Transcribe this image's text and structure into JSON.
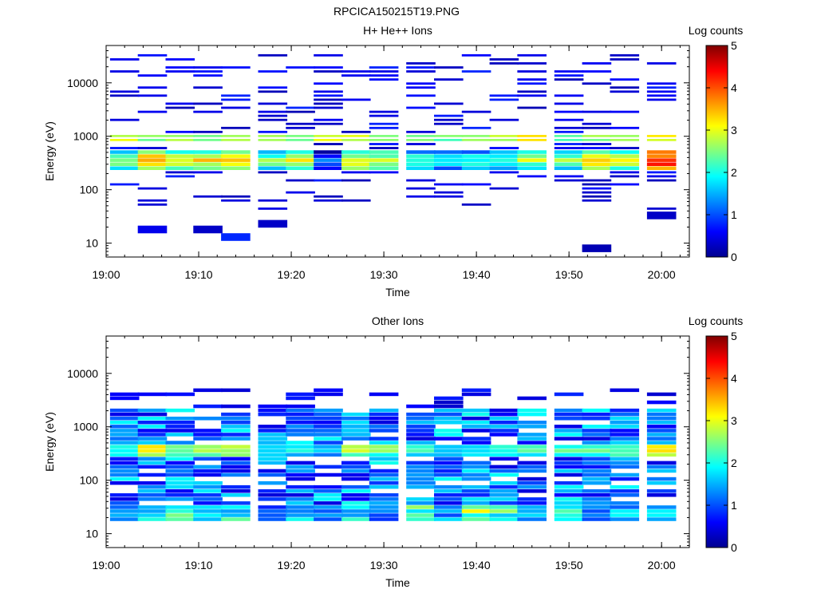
{
  "figure": {
    "title": "RPCICA150215T19.PNG"
  },
  "colors": {
    "background": "#ffffff",
    "axis": "#000000",
    "colormap": [
      "#00008f",
      "#0000ff",
      "#00ffff",
      "#ffff00",
      "#ff0000",
      "#800000"
    ]
  },
  "chart_data": [
    {
      "type": "heatmap",
      "title": "H+ He++ Ions",
      "xlabel": "Time",
      "ylabel": "Energy (eV)",
      "x_ticks": [
        "19:00",
        "19:10",
        "19:20",
        "19:30",
        "19:40",
        "19:50",
        "20:00"
      ],
      "y_ticks": [
        "10",
        "100",
        "1000",
        "10000"
      ],
      "y_scale": "log",
      "x_range": [
        "19:00",
        "20:03"
      ],
      "y_range": [
        5.5,
        50000
      ],
      "colorbar": {
        "label": "Log counts",
        "ticks": [
          "0",
          "1",
          "2",
          "3",
          "4",
          "5"
        ],
        "range": [
          0,
          5
        ]
      },
      "time_bins": [
        "19:02",
        "19:05",
        "19:08",
        "19:11",
        "19:14",
        "19:18",
        "19:21",
        "19:24",
        "19:27",
        "19:30",
        "19:34",
        "19:37",
        "19:40",
        "19:43",
        "19:46",
        "19:50",
        "19:53",
        "19:56",
        "20:00"
      ],
      "energy_peak_eV": 350,
      "peak_log_counts": [
        2.7,
        3.8,
        3.1,
        3.3,
        3.5,
        2.6,
        3.0,
        1.2,
        3.2,
        3.0,
        2.4,
        2.0,
        2.2,
        2.3,
        2.8,
        2.6,
        3.4,
        3.0,
        4.5
      ],
      "band_1000eV_log_counts": [
        2.9,
        2.5,
        2.8,
        2.6,
        2.7,
        2.6,
        2.4,
        2.9,
        2.8,
        2.7,
        2.6,
        2.4,
        2.5,
        2.8,
        3.1,
        2.4,
        2.6,
        2.5,
        3.0
      ],
      "low_energy_spots": [
        {
          "time": "19:05",
          "energy_eV": 18,
          "log_counts": 0.5
        },
        {
          "time": "19:11",
          "energy_eV": 18,
          "log_counts": 0.3
        },
        {
          "time": "19:14",
          "energy_eV": 13,
          "log_counts": 0.8
        },
        {
          "time": "19:18",
          "energy_eV": 23,
          "log_counts": 0.3
        },
        {
          "time": "19:53",
          "energy_eV": 8,
          "log_counts": 0.2
        },
        {
          "time": "20:00",
          "energy_eV": 33,
          "log_counts": 0.3
        }
      ]
    },
    {
      "type": "heatmap",
      "title": "Other Ions",
      "xlabel": "Time",
      "ylabel": "Energy (eV)",
      "x_ticks": [
        "19:00",
        "19:10",
        "19:20",
        "19:30",
        "19:40",
        "19:50",
        "20:00"
      ],
      "y_ticks": [
        "10",
        "100",
        "1000",
        "10000"
      ],
      "y_scale": "log",
      "x_range": [
        "19:00",
        "20:03"
      ],
      "y_range": [
        5.5,
        50000
      ],
      "colorbar": {
        "label": "Log counts",
        "ticks": [
          "0",
          "1",
          "2",
          "3",
          "4",
          "5"
        ],
        "range": [
          0,
          5
        ]
      },
      "time_bins": [
        "19:02",
        "19:05",
        "19:08",
        "19:11",
        "19:14",
        "19:18",
        "19:21",
        "19:24",
        "19:27",
        "19:30",
        "19:34",
        "19:37",
        "19:40",
        "19:43",
        "19:46",
        "19:50",
        "19:53",
        "19:56",
        "20:00"
      ],
      "energy_peak_eV": 380,
      "peak_log_counts": [
        2.2,
        3.3,
        2.6,
        2.9,
        3.0,
        2.0,
        2.2,
        1.6,
        2.9,
        2.7,
        2.2,
        1.9,
        2.1,
        2.3,
        2.5,
        2.4,
        2.6,
        2.6,
        3.4
      ],
      "low_energy_log_counts": [
        1.4,
        2.0,
        2.6,
        1.8,
        2.2,
        1.2,
        2.0,
        1.4,
        2.0,
        1.4,
        2.8,
        1.6,
        3.0,
        2.4,
        1.8,
        2.4,
        1.6,
        1.8,
        1.8
      ]
    }
  ]
}
